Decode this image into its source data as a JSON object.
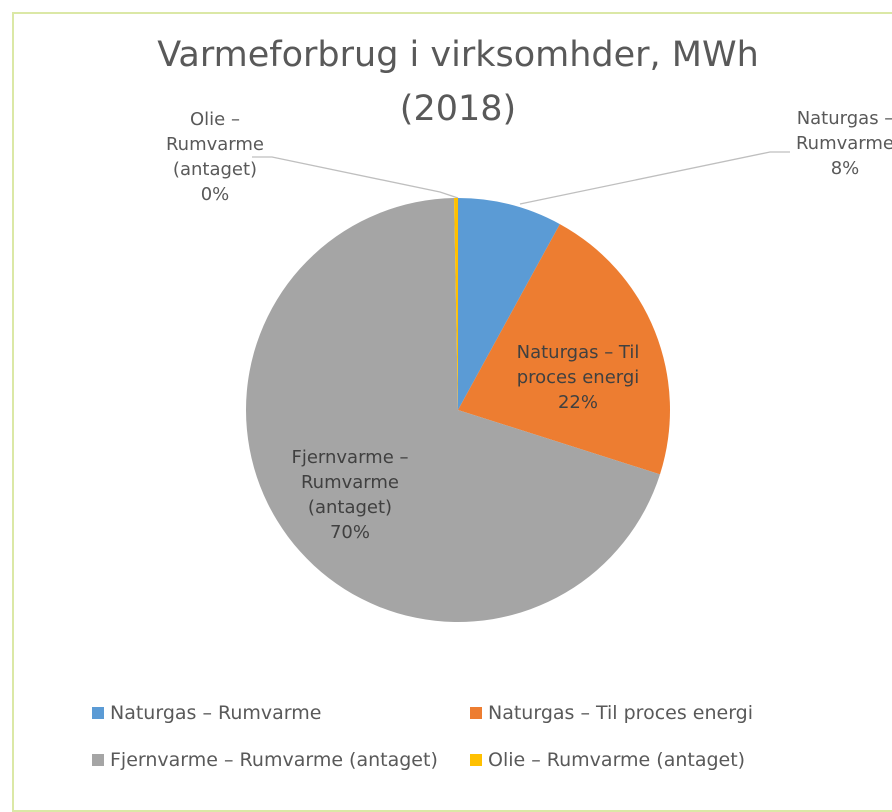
{
  "chart_data": {
    "type": "pie",
    "title": "Varmeforbrug i virksomhder, MWh (2018)",
    "categories": [
      "Naturgas – Rumvarme",
      "Naturgas – Til proces energi",
      "Fjernvarme – Rumvarme (antaget)",
      "Olie – Rumvarme (antaget)"
    ],
    "values": [
      8,
      22,
      70,
      0.3
    ],
    "value_labels": [
      "8%",
      "22%",
      "70%",
      "0%"
    ],
    "colors": [
      "#5b9bd5",
      "#ed7d31",
      "#a5a5a5",
      "#ffc000"
    ]
  }
}
